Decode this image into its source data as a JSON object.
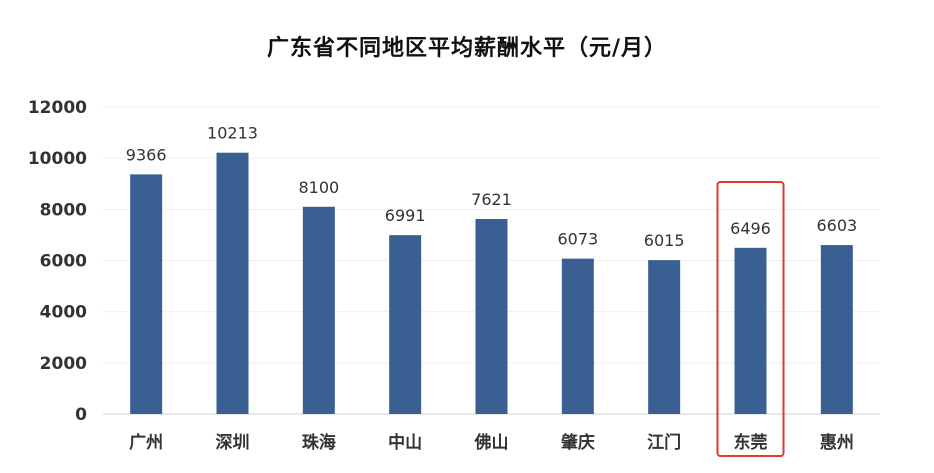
{
  "chart_data": {
    "type": "bar",
    "title": "广东省不同地区平均薪酬水平（元/月）",
    "categories": [
      "广州",
      "深圳",
      "珠海",
      "中山",
      "佛山",
      "肇庆",
      "江门",
      "东莞",
      "惠州"
    ],
    "values": [
      9366,
      10213,
      8100,
      6991,
      7621,
      6073,
      6015,
      6496,
      6603
    ],
    "ylim": [
      0,
      12000
    ],
    "yticks": [
      0,
      2000,
      4000,
      6000,
      8000,
      10000,
      12000
    ],
    "grid": true,
    "legend": "none",
    "bar_color": "#3A5F92",
    "highlight": {
      "category": "东莞",
      "color": "#E03A2E"
    }
  }
}
